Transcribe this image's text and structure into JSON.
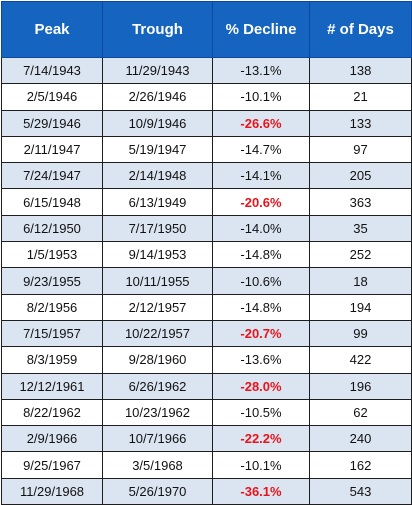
{
  "headers": [
    "Peak",
    "Trough",
    "% Decline",
    "# of Days"
  ],
  "highlight_color": "#e8141a",
  "header_bg": "#1565c0",
  "stripe_bg": "#dbe5f1",
  "rows": [
    {
      "peak": "7/14/1943",
      "trough": "11/29/1943",
      "decline": "-13.1%",
      "days": "138",
      "highlight": false
    },
    {
      "peak": "2/5/1946",
      "trough": "2/26/1946",
      "decline": "-10.1%",
      "days": "21",
      "highlight": false
    },
    {
      "peak": "5/29/1946",
      "trough": "10/9/1946",
      "decline": "-26.6%",
      "days": "133",
      "highlight": true
    },
    {
      "peak": "2/11/1947",
      "trough": "5/19/1947",
      "decline": "-14.7%",
      "days": "97",
      "highlight": false
    },
    {
      "peak": "7/24/1947",
      "trough": "2/14/1948",
      "decline": "-14.1%",
      "days": "205",
      "highlight": false
    },
    {
      "peak": "6/15/1948",
      "trough": "6/13/1949",
      "decline": "-20.6%",
      "days": "363",
      "highlight": true
    },
    {
      "peak": "6/12/1950",
      "trough": "7/17/1950",
      "decline": "-14.0%",
      "days": "35",
      "highlight": false
    },
    {
      "peak": "1/5/1953",
      "trough": "9/14/1953",
      "decline": "-14.8%",
      "days": "252",
      "highlight": false
    },
    {
      "peak": "9/23/1955",
      "trough": "10/11/1955",
      "decline": "-10.6%",
      "days": "18",
      "highlight": false
    },
    {
      "peak": "8/2/1956",
      "trough": "2/12/1957",
      "decline": "-14.8%",
      "days": "194",
      "highlight": false
    },
    {
      "peak": "7/15/1957",
      "trough": "10/22/1957",
      "decline": "-20.7%",
      "days": "99",
      "highlight": true
    },
    {
      "peak": "8/3/1959",
      "trough": "9/28/1960",
      "decline": "-13.6%",
      "days": "422",
      "highlight": false
    },
    {
      "peak": "12/12/1961",
      "trough": "6/26/1962",
      "decline": "-28.0%",
      "days": "196",
      "highlight": true
    },
    {
      "peak": "8/22/1962",
      "trough": "10/23/1962",
      "decline": "-10.5%",
      "days": "62",
      "highlight": false
    },
    {
      "peak": "2/9/1966",
      "trough": "10/7/1966",
      "decline": "-22.2%",
      "days": "240",
      "highlight": true
    },
    {
      "peak": "9/25/1967",
      "trough": "3/5/1968",
      "decline": "-10.1%",
      "days": "162",
      "highlight": false
    },
    {
      "peak": "11/29/1968",
      "trough": "5/26/1970",
      "decline": "-36.1%",
      "days": "543",
      "highlight": true
    }
  ]
}
